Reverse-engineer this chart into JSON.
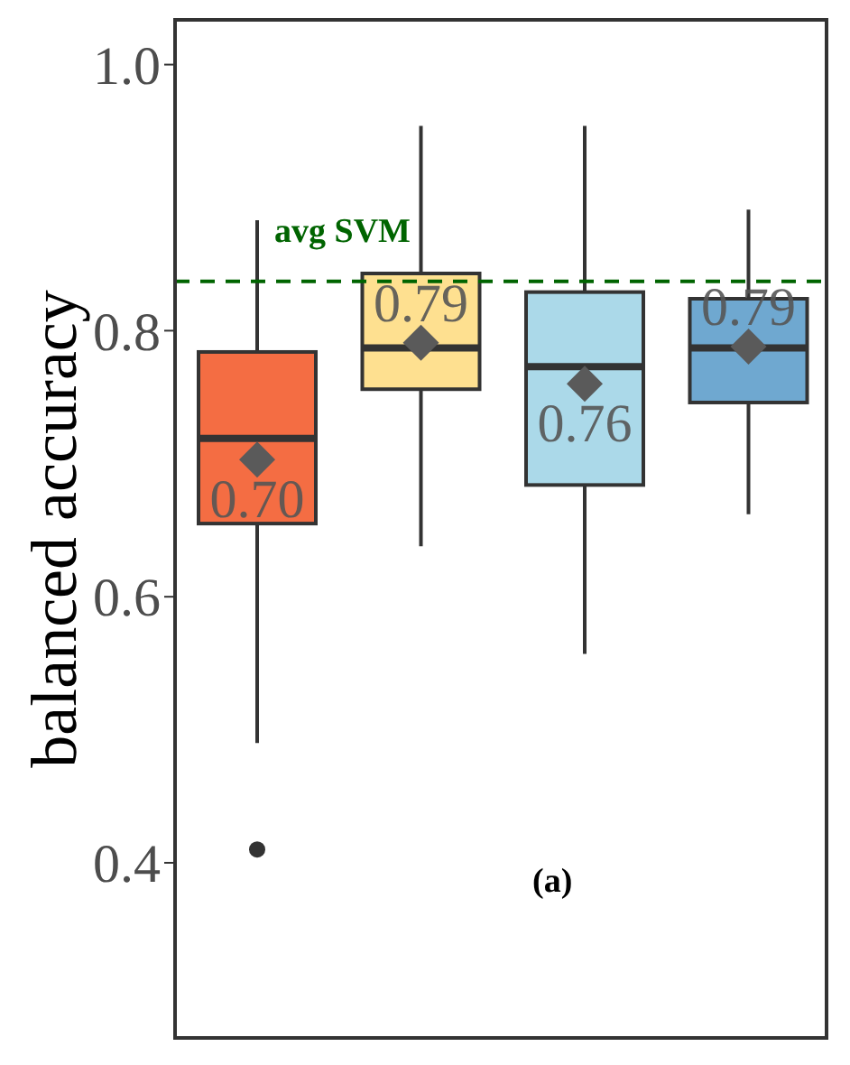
{
  "chart_data": {
    "type": "box",
    "ylabel": "balanced accuracy",
    "categories": [
      null,
      null,
      null,
      null
    ],
    "colors": [
      "#f46d43",
      "#fee090",
      "#abd9e9",
      "#6fa8d0"
    ],
    "boxes": [
      {
        "low": 0.49,
        "q1": 0.655,
        "median": 0.719,
        "q3": 0.784,
        "high": 0.883,
        "mean": 0.703,
        "outliers": [
          0.41
        ]
      },
      {
        "low": 0.638,
        "q1": 0.756,
        "median": 0.787,
        "q3": 0.843,
        "high": 0.954,
        "mean": 0.791
      },
      {
        "low": 0.557,
        "q1": 0.684,
        "median": 0.773,
        "q3": 0.829,
        "high": 0.954,
        "mean": 0.76
      },
      {
        "low": 0.662,
        "q1": 0.746,
        "median": 0.787,
        "q3": 0.824,
        "high": 0.891,
        "mean": 0.788
      }
    ],
    "value_labels": [
      "0.70",
      "0.79",
      "0.76",
      "0.79"
    ],
    "ylim": [
      0.267,
      1.035
    ],
    "yticks": [
      0.4,
      0.6,
      0.8,
      {
        "value": 1.0,
        "label": "1.0"
      }
    ],
    "tick_labels": "y",
    "ref_lines": [
      {
        "axis": "y",
        "value": 0.837,
        "label": "avg SVM",
        "color": "#006400",
        "line_style": "dashed"
      }
    ],
    "annotations": [
      "(a)"
    ]
  }
}
